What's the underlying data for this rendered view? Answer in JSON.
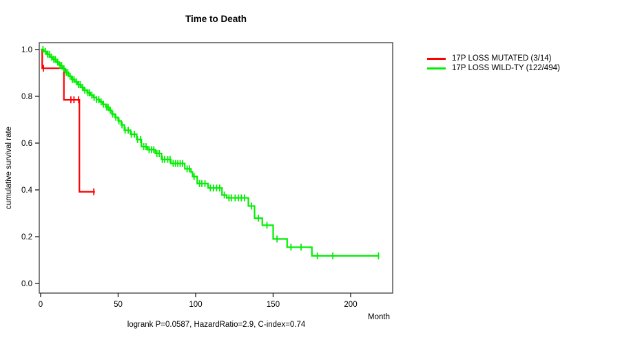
{
  "title": "Time to Death",
  "footer_stats": "logrank P=0.0587, HazardRatio=2.9, C-index=0.74",
  "axes": {
    "x_label": "Month",
    "y_label": "cumulative survival rate",
    "x_tick_labels": [
      "0",
      "50",
      "100",
      "150",
      "200"
    ],
    "y_tick_labels": [
      "0.0",
      "0.2",
      "0.4",
      "0.6",
      "0.8",
      "1.0"
    ]
  },
  "legend": {
    "items": [
      {
        "label": "17P LOSS MUTATED (3/14)",
        "color": "#ff0000"
      },
      {
        "label": "17P LOSS WILD-TY (122/494)",
        "color": "#00ee00"
      }
    ]
  },
  "colors": {
    "mutated": "#ff0000",
    "wildtype": "#00ee00",
    "frame": "#606060",
    "axis": "#2a2a2a",
    "text": "#000000",
    "background": "#ffffff"
  },
  "chart_data": {
    "type": "line",
    "subtype": "kaplan_meier_step",
    "title": "Time to Death",
    "xlabel": "Month",
    "ylabel": "cumulative survival rate",
    "xlim": [
      0,
      227
    ],
    "ylim": [
      0,
      1.0
    ],
    "x_ticks": [
      0,
      50,
      100,
      150,
      200
    ],
    "y_ticks": [
      0.0,
      0.2,
      0.4,
      0.6,
      0.8,
      1.0
    ],
    "grid": false,
    "legend_position": "right-outside",
    "series": [
      {
        "id": "mutated",
        "name": "17P LOSS MUTATED (3/14)",
        "color": "#ff0000",
        "steps": [
          [
            0,
            1.0
          ],
          [
            1,
            0.92
          ],
          [
            15,
            0.785
          ],
          [
            25,
            0.392
          ]
        ],
        "end_time": 35,
        "censor_times": [
          1.8,
          19.5,
          21.5,
          24.5,
          34.3
        ]
      },
      {
        "id": "wildtype",
        "name": "17P LOSS WILD-TY (122/494)",
        "color": "#00ee00",
        "steps": [
          [
            0,
            1.0
          ],
          [
            2,
            0.992
          ],
          [
            4,
            0.98
          ],
          [
            6,
            0.968
          ],
          [
            8,
            0.958
          ],
          [
            10,
            0.946
          ],
          [
            12,
            0.932
          ],
          [
            14,
            0.918
          ],
          [
            16,
            0.902
          ],
          [
            18,
            0.886
          ],
          [
            20,
            0.872
          ],
          [
            22,
            0.862
          ],
          [
            24,
            0.85
          ],
          [
            26,
            0.838
          ],
          [
            28,
            0.826
          ],
          [
            30,
            0.815
          ],
          [
            32,
            0.805
          ],
          [
            34,
            0.795
          ],
          [
            36,
            0.786
          ],
          [
            38,
            0.776
          ],
          [
            40,
            0.766
          ],
          [
            42,
            0.754
          ],
          [
            44,
            0.74
          ],
          [
            46,
            0.724
          ],
          [
            48,
            0.71
          ],
          [
            50,
            0.695
          ],
          [
            52,
            0.678
          ],
          [
            54,
            0.655
          ],
          [
            58,
            0.638
          ],
          [
            62,
            0.615
          ],
          [
            65,
            0.585
          ],
          [
            69,
            0.572
          ],
          [
            74,
            0.556
          ],
          [
            78,
            0.53
          ],
          [
            84,
            0.513
          ],
          [
            93,
            0.49
          ],
          [
            97,
            0.476
          ],
          [
            98,
            0.457
          ],
          [
            101,
            0.427
          ],
          [
            108,
            0.408
          ],
          [
            117,
            0.378
          ],
          [
            120,
            0.366
          ],
          [
            134,
            0.331
          ],
          [
            138,
            0.279
          ],
          [
            143,
            0.249
          ],
          [
            150,
            0.19
          ],
          [
            159,
            0.155
          ],
          [
            175,
            0.118
          ]
        ],
        "end_time": 218,
        "censor_times": [
          1.5,
          3,
          4.5,
          5.5,
          7,
          8.5,
          9.5,
          11,
          12.5,
          13.5,
          15,
          16.5,
          17.5,
          19,
          20.5,
          21.5,
          23,
          24.5,
          25.5,
          27,
          28.5,
          30.5,
          31.5,
          33,
          34.5,
          36,
          37.5,
          39,
          40.5,
          42.5,
          43.5,
          45,
          46.5,
          48.5,
          50.5,
          52.5,
          54.5,
          56.5,
          58.5,
          60.5,
          62.5,
          64.5,
          66.5,
          68,
          70,
          71.5,
          73,
          75,
          76.5,
          78.5,
          80,
          82,
          83.5,
          85.5,
          87,
          88.5,
          90,
          91.5,
          94.5,
          96,
          99,
          102.5,
          104,
          106,
          109.5,
          111.5,
          113.5,
          115.5,
          118.5,
          121.5,
          123,
          125.5,
          127.5,
          129.5,
          131.5,
          136,
          140.5,
          146,
          152.5,
          161.5,
          168,
          178.5,
          188.5,
          218
        ]
      }
    ]
  }
}
